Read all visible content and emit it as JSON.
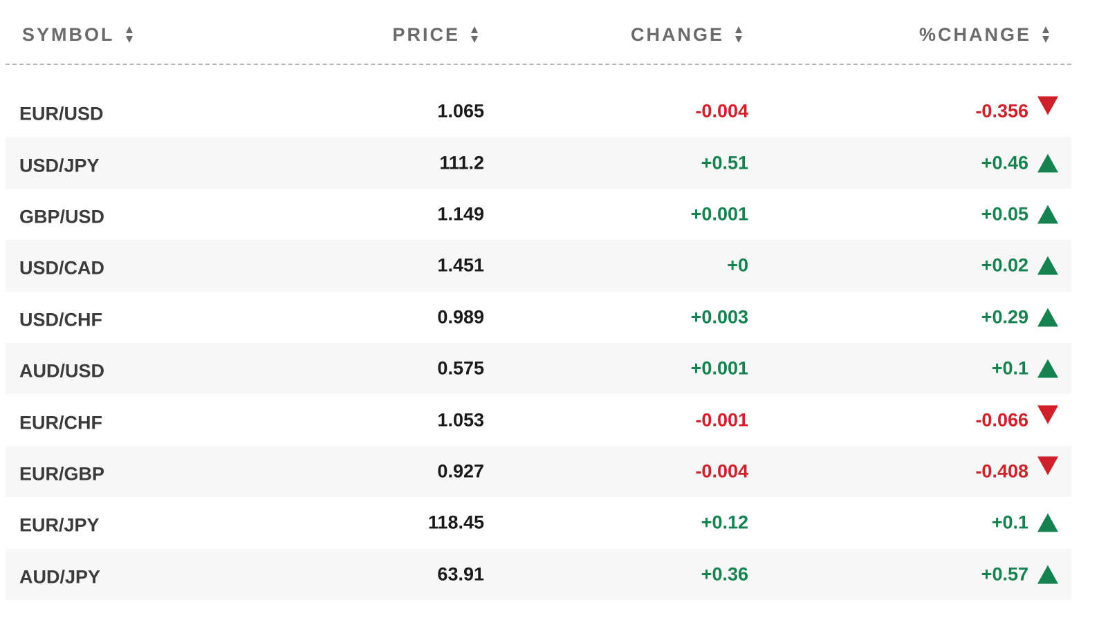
{
  "columns": {
    "symbol": "SYMBOL",
    "price": "PRICE",
    "change": "CHANGE",
    "pct_change": "%CHANGE"
  },
  "colors": {
    "positive": "#16824f",
    "negative": "#d0212a",
    "header_text": "#6b6b6b",
    "row_alt_bg": "#f7f7f7"
  },
  "icons": {
    "sort": "sort-icon",
    "up": "triangle-up-icon",
    "down": "triangle-down-icon"
  },
  "rows": [
    {
      "symbol": "EUR/USD",
      "price": "1.065",
      "change": "-0.004",
      "pct_change": "-0.356",
      "direction": "down"
    },
    {
      "symbol": "USD/JPY",
      "price": "111.2",
      "change": "+0.51",
      "pct_change": "+0.46",
      "direction": "up"
    },
    {
      "symbol": "GBP/USD",
      "price": "1.149",
      "change": "+0.001",
      "pct_change": "+0.05",
      "direction": "up"
    },
    {
      "symbol": "USD/CAD",
      "price": "1.451",
      "change": "+0",
      "pct_change": "+0.02",
      "direction": "up"
    },
    {
      "symbol": "USD/CHF",
      "price": "0.989",
      "change": "+0.003",
      "pct_change": "+0.29",
      "direction": "up"
    },
    {
      "symbol": "AUD/USD",
      "price": "0.575",
      "change": "+0.001",
      "pct_change": "+0.1",
      "direction": "up"
    },
    {
      "symbol": "EUR/CHF",
      "price": "1.053",
      "change": "-0.001",
      "pct_change": "-0.066",
      "direction": "down"
    },
    {
      "symbol": "EUR/GBP",
      "price": "0.927",
      "change": "-0.004",
      "pct_change": "-0.408",
      "direction": "down"
    },
    {
      "symbol": "EUR/JPY",
      "price": "118.45",
      "change": "+0.12",
      "pct_change": "+0.1",
      "direction": "up"
    },
    {
      "symbol": "AUD/JPY",
      "price": "63.91",
      "change": "+0.36",
      "pct_change": "+0.57",
      "direction": "up"
    }
  ]
}
